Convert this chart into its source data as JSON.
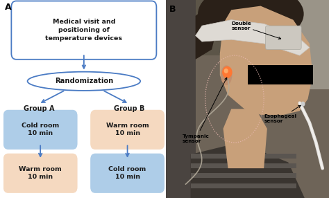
{
  "panel_a_label": "A",
  "panel_b_label": "B",
  "top_box_text": "Medical visit and\npositioning of\ntemperature devices",
  "randomization_text": "Randomization",
  "group_a_text": "Group A",
  "group_b_text": "Group B",
  "box_cold_a": "Cold room\n10 min",
  "box_warm_a": "Warm room\n10 min",
  "box_warm_b": "Warm room\n10 min",
  "box_cold_b": "Cold room\n10 min",
  "blue_color": "#aecde8",
  "peach_color": "#f5d9c0",
  "border_color": "#4a7bc4",
  "arrow_color": "#4a7bc4",
  "text_color": "#1a1a1a",
  "bg_color": "#ffffff",
  "double_sensor_label": "Double\nsensor",
  "esophageal_label": "Esophageal\nsensor",
  "tympanic_label": "Tympanic\nsensor",
  "photo_bg": "#7a6e62",
  "skin_color": "#c8a07a",
  "hair_color": "#2a2018",
  "headband_color": "#d8d4cc",
  "privacy_bar": "#000000"
}
